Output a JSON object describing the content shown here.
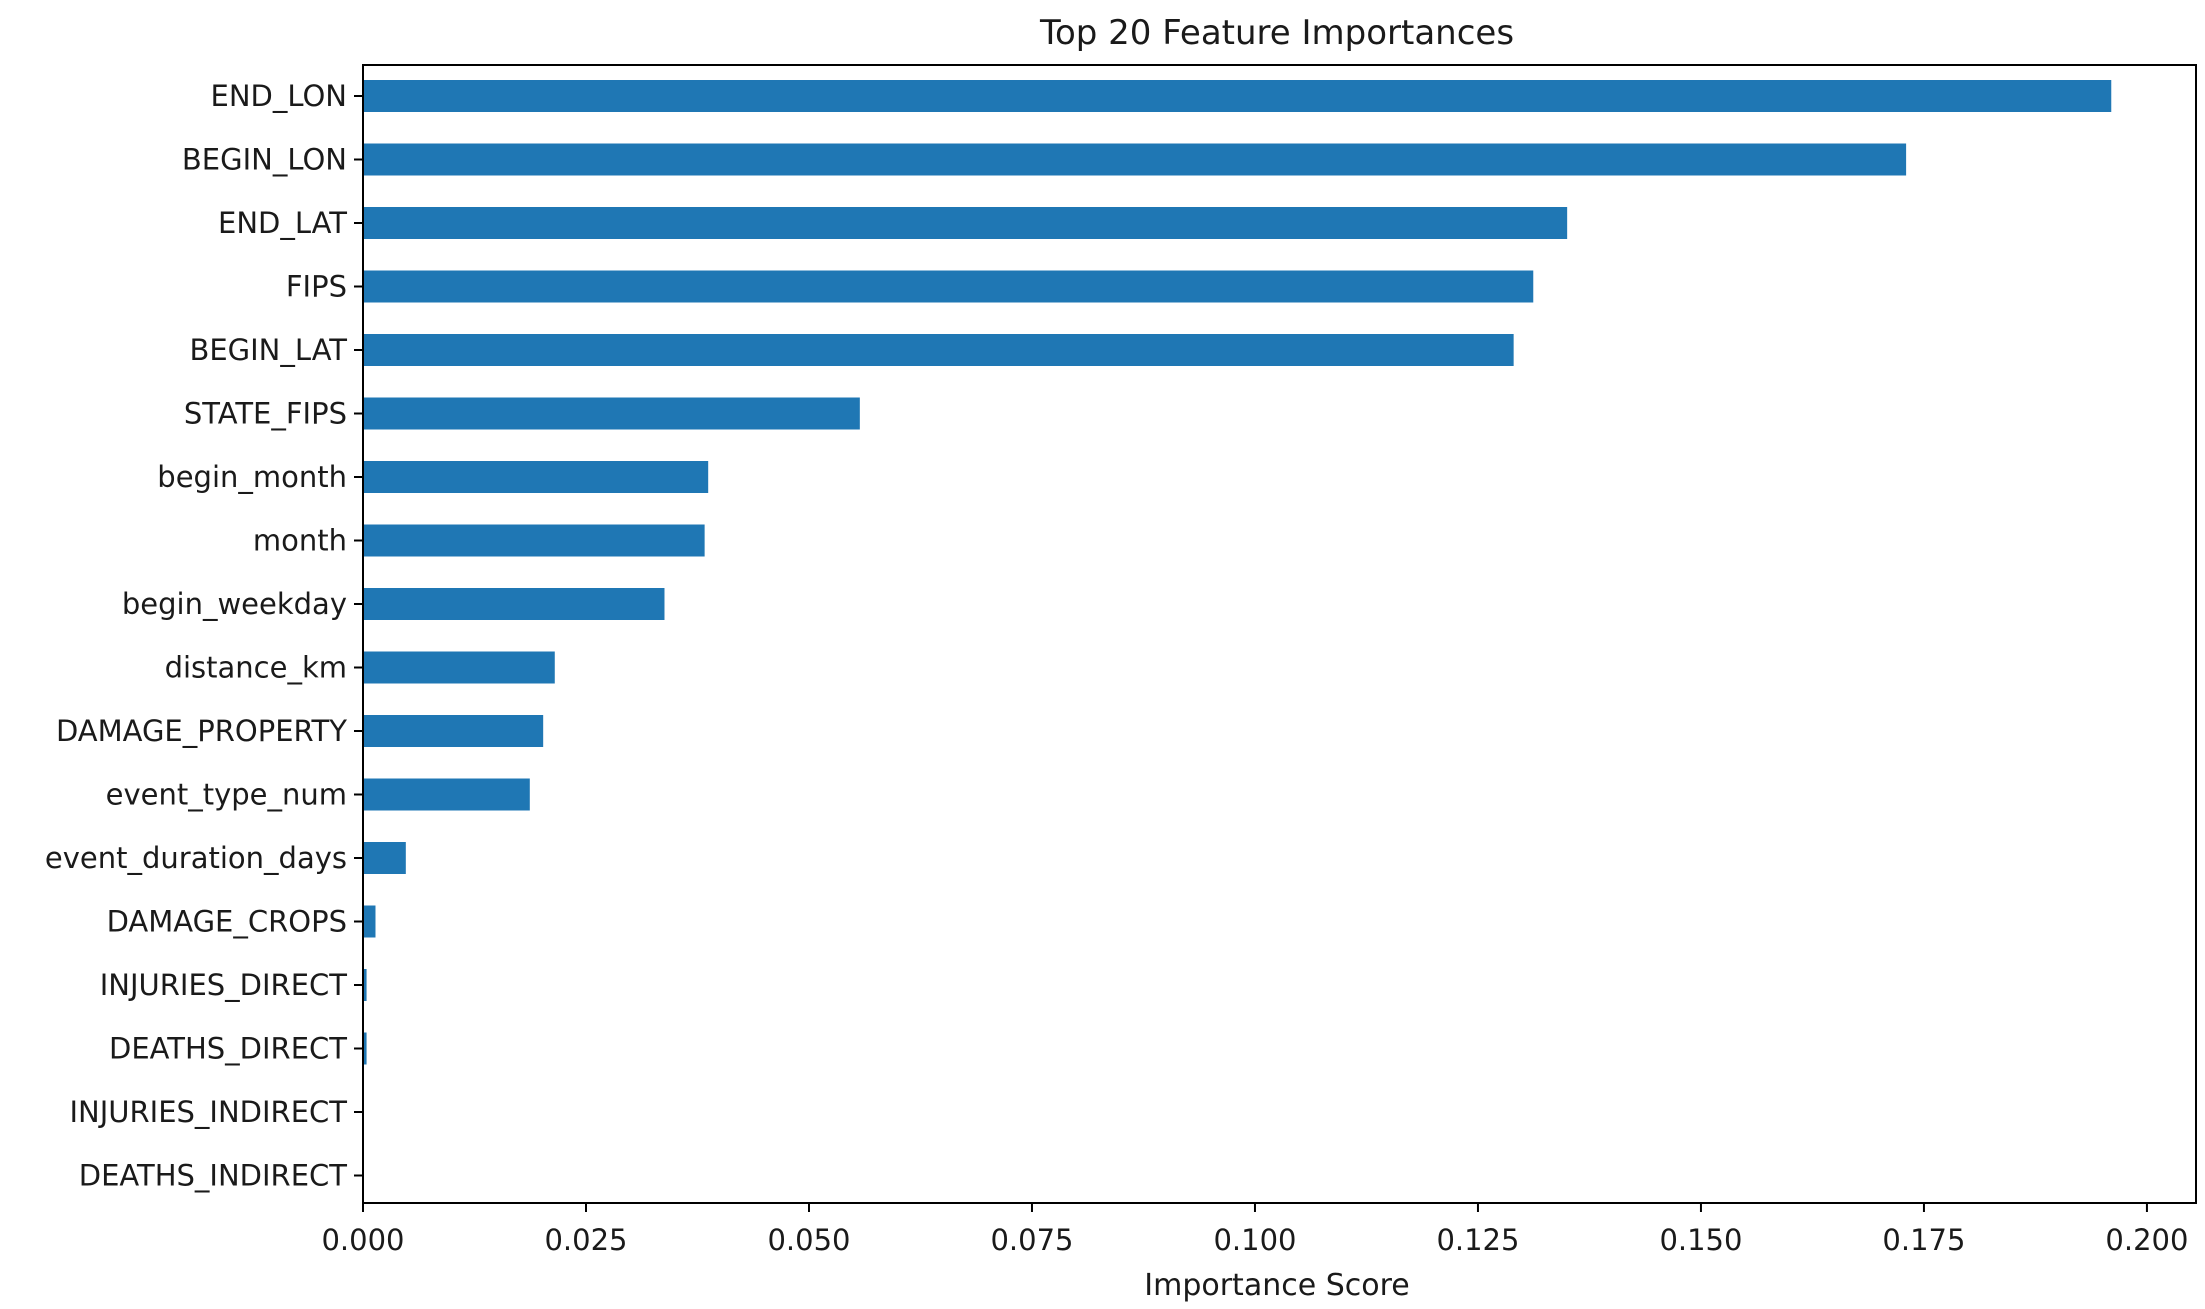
{
  "chart_data": {
    "type": "bar",
    "orientation": "horizontal",
    "title": "Top 20 Feature Importances",
    "xlabel": "Importance Score",
    "ylabel": "",
    "xlim": [
      0,
      0.2055
    ],
    "xticks": [
      "0.000",
      "0.025",
      "0.050",
      "0.075",
      "0.100",
      "0.125",
      "0.150",
      "0.175",
      "0.200"
    ],
    "xtick_values": [
      0,
      0.025,
      0.05,
      0.075,
      0.1,
      0.125,
      0.15,
      0.175,
      0.2
    ],
    "grid": false,
    "legend": "none",
    "bar_color": "#1f77b4",
    "categories": [
      "END_LON",
      "BEGIN_LON",
      "END_LAT",
      "FIPS",
      "BEGIN_LAT",
      "STATE_FIPS",
      "begin_month",
      "month",
      "begin_weekday",
      "distance_km",
      "DAMAGE_PROPERTY",
      "event_type_num",
      "event_duration_days",
      "DAMAGE_CROPS",
      "INJURIES_DIRECT",
      "DEATHS_DIRECT",
      "INJURIES_INDIRECT",
      "DEATHS_INDIRECT"
    ],
    "values": [
      0.196,
      0.173,
      0.135,
      0.1312,
      0.129,
      0.0557,
      0.0387,
      0.0383,
      0.0338,
      0.0215,
      0.0202,
      0.0187,
      0.0048,
      0.0014,
      0.0004,
      0.0004,
      0.0,
      0.0
    ]
  }
}
